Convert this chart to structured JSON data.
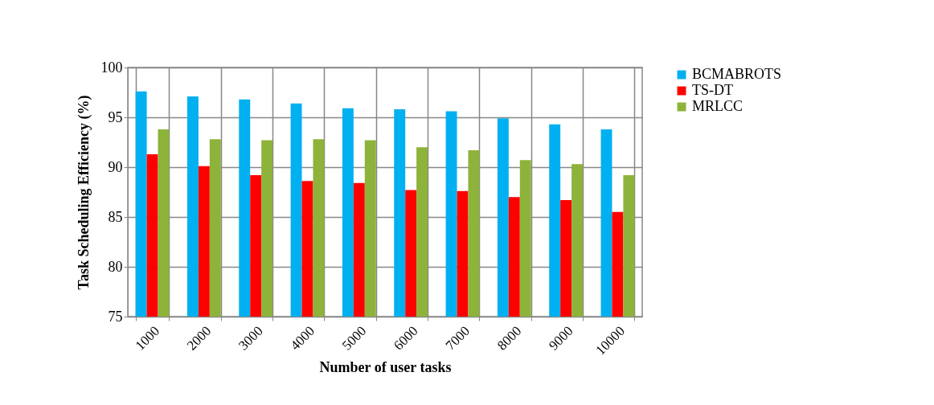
{
  "chart_data": {
    "type": "bar",
    "xlabel": "Number of user tasks",
    "ylabel": "Task Scheduling Efficiency (%)",
    "categories": [
      "1000",
      "2000",
      "3000",
      "4000",
      "5000",
      "6000",
      "7000",
      "8000",
      "9000",
      "10000"
    ],
    "series": [
      {
        "name": "BCMABROTS",
        "color": "#00b0f0",
        "values": [
          97.6,
          97.1,
          96.8,
          96.4,
          95.9,
          95.8,
          95.6,
          94.9,
          94.3,
          93.8
        ]
      },
      {
        "name": "TS-DT",
        "color": "#ff0000",
        "values": [
          91.3,
          90.1,
          89.2,
          88.6,
          88.4,
          87.7,
          87.6,
          87.0,
          86.7,
          85.5
        ]
      },
      {
        "name": "MRLCC",
        "color": "#8db33a",
        "values": [
          93.8,
          92.8,
          92.7,
          92.8,
          92.7,
          92.0,
          91.7,
          90.7,
          90.3,
          89.2
        ]
      }
    ],
    "ylim": [
      75,
      100
    ],
    "yticks": [
      75,
      80,
      85,
      90,
      95,
      100
    ],
    "grid": true,
    "legend": "right"
  }
}
